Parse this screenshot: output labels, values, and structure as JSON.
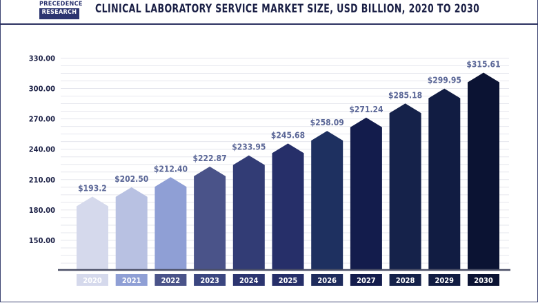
{
  "header": {
    "logo_line1": "PRECEDENCE",
    "logo_line2": "RESEARCH"
  },
  "chart_data": {
    "type": "bar",
    "title": "CLINICAL LABORATORY SERVICE MARKET SIZE, USD BILLION, 2020 TO 2030",
    "categories": [
      "2020",
      "2021",
      "2022",
      "2023",
      "2024",
      "2025",
      "2026",
      "2027",
      "2028",
      "2029",
      "2030"
    ],
    "values": [
      193.2,
      202.5,
      212.4,
      222.87,
      233.95,
      245.68,
      258.09,
      271.24,
      285.18,
      299.95,
      315.61
    ],
    "data_labels": [
      "$193.2",
      "$202.50",
      "$212.40",
      "$222.87",
      "$233.95",
      "$245.68",
      "$258.09",
      "$271.24",
      "$285.18",
      "$299.95",
      "$315.61"
    ],
    "yticks": [
      "150.00",
      "180.00",
      "210.00",
      "240.00",
      "270.00",
      "300.00",
      "330.00"
    ],
    "ylim": [
      120,
      330
    ],
    "grid": true,
    "xlabel": "",
    "ylabel": "",
    "bar_colors": [
      "#d5d9ec",
      "#b8c1e2",
      "#8f9fd5",
      "#4a5389",
      "#323c75",
      "#262f69",
      "#1e3060",
      "#131c4c",
      "#15224a",
      "#111c42",
      "#0b1333"
    ],
    "label_colors": [
      "#d5d9ec",
      "#8f9fd5",
      "#4a5389",
      "#3b4680",
      "#2c3570",
      "#262f69",
      "#1e2b5c",
      "#131c4c",
      "#15224a",
      "#111c42",
      "#0b1333"
    ]
  }
}
